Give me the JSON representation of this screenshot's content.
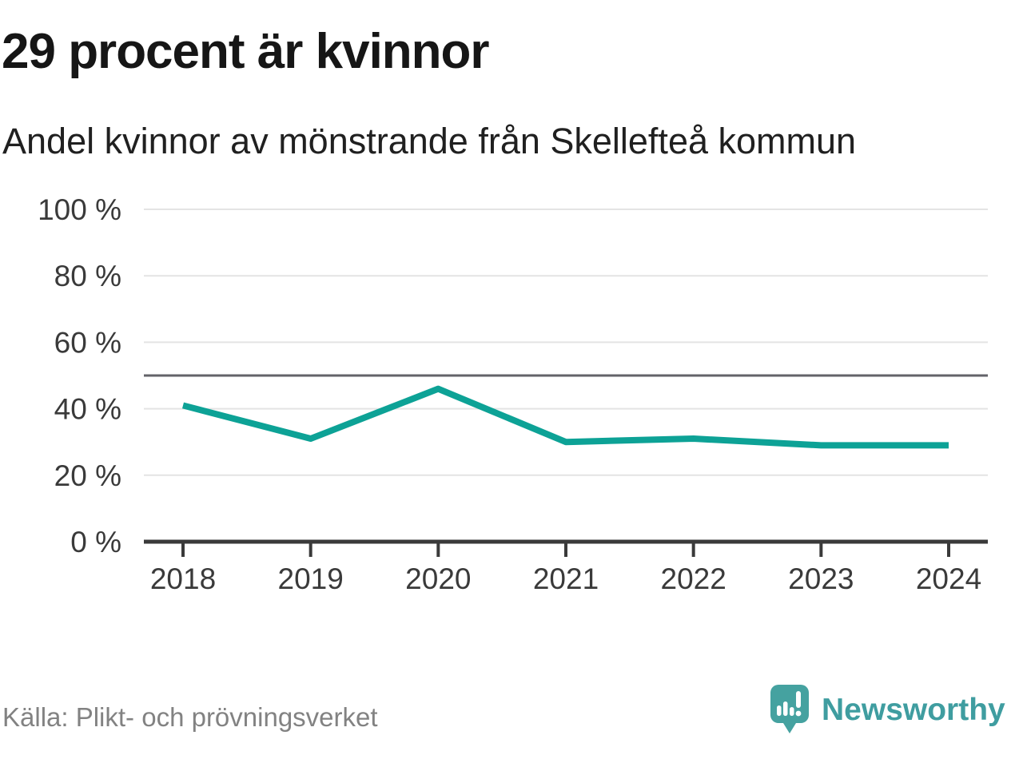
{
  "header": {
    "title": "29 procent är kvinnor",
    "subtitle": "Andel kvinnor av mönstrande från Skellefteå kommun"
  },
  "chart_data": {
    "type": "line",
    "title": "29 procent är kvinnor",
    "subtitle": "Andel kvinnor av mönstrande från Skellefteå kommun",
    "categories": [
      "2018",
      "2019",
      "2020",
      "2021",
      "2022",
      "2023",
      "2024"
    ],
    "series": [
      {
        "name": "Andel kvinnor av mönstrande",
        "values": [
          41,
          31,
          46,
          30,
          31,
          29,
          29
        ]
      }
    ],
    "unit": "%",
    "ylim": [
      0,
      100
    ],
    "yticks": [
      0,
      20,
      40,
      60,
      80,
      100
    ],
    "ytick_labels": [
      "0 %",
      "20 %",
      "40 %",
      "60 %",
      "80 %",
      "100 %"
    ],
    "reference_line": 50,
    "grid": true,
    "legend": "none",
    "colors": {
      "line": "#0da296",
      "reference": "#636369",
      "grid": "#e4e4e4",
      "axis": "#3a3a3a",
      "tick_text": "#3a3a3a"
    }
  },
  "footer": {
    "source": "Källa: Plikt- och prövningsverket",
    "brand": "Newsworthy",
    "logo_icon": "bar-chart-speech-bubble-icon",
    "brand_color": "#3f9da0",
    "logo_fill": "#45a2a0"
  }
}
